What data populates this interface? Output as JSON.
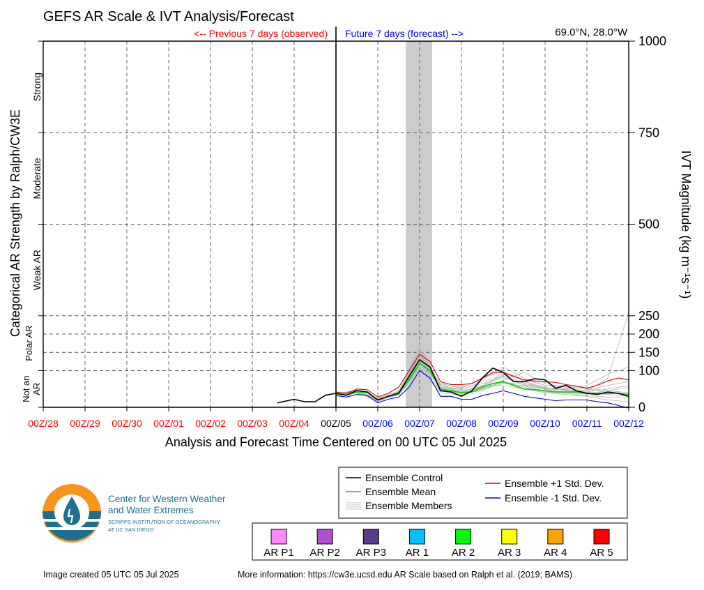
{
  "figure": {
    "title": "GEFS AR Scale & IVT Analysis/Forecast",
    "previous_label": "<-- Previous 7 days (observed)",
    "future_label": "Future 7 days (forecast) -->",
    "location": "69.0°N, 28.0°W",
    "footer_created": "Image created 05 UTC 05 Jul 2025",
    "footer_more": "More information: https://cw3e.ucsd.edu AR Scale based on Ralph et al. (2019; BAMS)",
    "logo": {
      "line1": "Center for Western Weather",
      "line2": "and Water Extremes",
      "line3": "SCRIPPS INSTITUTION OF OCEANOGRAPHY",
      "line4": "AT UC SAN DIEGO",
      "icon": "cw3e-water-drop-logo"
    },
    "colors": {
      "observed": "#ff0000",
      "forecast": "#0000ff",
      "control": "#000000",
      "mean": "#00dd00",
      "plus_std": "#dd0000",
      "minus_std": "#0000dd",
      "members": "#b4b4b4",
      "shade": "#cccccc"
    }
  },
  "chart_data": {
    "type": "line",
    "title": "GEFS AR Scale & IVT Analysis/Forecast",
    "xlabel": "Analysis and Forecast Time Centered on 00 UTC 05 Jul 2025",
    "ylabel_left": "Categorical AR Strength by Ralph/CW3E",
    "ylabel_right": "IVT Magnitude (kg m⁻¹s⁻¹)",
    "x_unit": "days relative to 00Z/05",
    "xlim": [
      -7,
      7
    ],
    "ylim": [
      0,
      1000
    ],
    "x_ticks": [
      {
        "x": -7,
        "label": "00Z/28",
        "kind": "observed"
      },
      {
        "x": -6,
        "label": "00Z/29",
        "kind": "observed"
      },
      {
        "x": -5,
        "label": "00Z/30",
        "kind": "observed"
      },
      {
        "x": -4,
        "label": "00Z/01",
        "kind": "observed"
      },
      {
        "x": -3,
        "label": "00Z/02",
        "kind": "observed"
      },
      {
        "x": -2,
        "label": "00Z/03",
        "kind": "observed"
      },
      {
        "x": -1,
        "label": "00Z/04",
        "kind": "observed"
      },
      {
        "x": 0,
        "label": "00Z/05",
        "kind": "current"
      },
      {
        "x": 1,
        "label": "00Z/06",
        "kind": "forecast"
      },
      {
        "x": 2,
        "label": "00Z/07",
        "kind": "forecast"
      },
      {
        "x": 3,
        "label": "00Z/08",
        "kind": "forecast"
      },
      {
        "x": 4,
        "label": "00Z/09",
        "kind": "forecast"
      },
      {
        "x": 5,
        "label": "00Z/10",
        "kind": "forecast"
      },
      {
        "x": 6,
        "label": "00Z/11",
        "kind": "forecast"
      },
      {
        "x": 7,
        "label": "00Z/12",
        "kind": "forecast"
      }
    ],
    "y_ticks": [
      {
        "y": 0,
        "label": "0"
      },
      {
        "y": 100,
        "label": "100"
      },
      {
        "y": 150,
        "label": "150"
      },
      {
        "y": 200,
        "label": "200"
      },
      {
        "y": 250,
        "label": "250"
      },
      {
        "y": 500,
        "label": "500"
      },
      {
        "y": 750,
        "label": "750"
      },
      {
        "y": 1000,
        "label": "1000"
      }
    ],
    "categories": [
      {
        "label": "Strong",
        "y0": 750,
        "y1": 1000
      },
      {
        "label": "Moderate",
        "y0": 500,
        "y1": 750
      },
      {
        "label": "Weak AR",
        "y0": 250,
        "y1": 500
      },
      {
        "label_lines": [
          "Polar AR"
        ],
        "y0": 100,
        "y1": 250
      },
      {
        "label_lines": [
          "Not an",
          "AR"
        ],
        "y0": 0,
        "y1": 100
      }
    ],
    "shaded_x_range": [
      1.67,
      2.3
    ],
    "grid": true,
    "legend": {
      "placement": "bottom-right",
      "entries": [
        {
          "key": "control",
          "label": "Ensemble Control"
        },
        {
          "key": "mean",
          "label": "Ensemble Mean"
        },
        {
          "key": "members",
          "label": "Ensemble Members"
        },
        {
          "key": "plus",
          "label": "Ensemble +1 Std. Dev."
        },
        {
          "key": "minus",
          "label": "Ensemble -1 Std. Dev."
        }
      ]
    },
    "ar_scale": [
      {
        "label": "AR P1",
        "color": "#ff88ff"
      },
      {
        "label": "AR P2",
        "color": "#b050d0"
      },
      {
        "label": "AR P3",
        "color": "#5a3a8a"
      },
      {
        "label": "AR 1",
        "color": "#00c0ff"
      },
      {
        "label": "AR 2",
        "color": "#00ff00"
      },
      {
        "label": "AR 3",
        "color": "#ffff00"
      },
      {
        "label": "AR 4",
        "color": "#ffa500"
      },
      {
        "label": "AR 5",
        "color": "#ff0000"
      }
    ],
    "series": [
      {
        "key": "control",
        "x": [
          -1.4,
          -1.0,
          -0.75,
          -0.5,
          -0.25,
          0,
          0.25,
          0.5,
          0.75,
          1.0,
          1.25,
          1.5,
          1.75,
          2.0,
          2.25,
          2.5,
          2.75,
          3.0,
          3.25,
          3.5,
          3.75,
          4.0,
          4.25,
          4.5,
          4.75,
          5.0,
          5.25,
          5.5,
          5.75,
          6.0,
          6.25,
          6.5,
          6.75,
          7.0
        ],
        "y": [
          12,
          22,
          15,
          15,
          33,
          38,
          33,
          46,
          42,
          20,
          30,
          38,
          85,
          130,
          110,
          45,
          42,
          30,
          45,
          80,
          107,
          95,
          70,
          70,
          78,
          75,
          52,
          60,
          45,
          38,
          35,
          42,
          38,
          30
        ]
      },
      {
        "key": "mean",
        "x": [
          0,
          0.25,
          0.5,
          0.75,
          1.0,
          1.25,
          1.5,
          1.75,
          2.0,
          2.25,
          2.5,
          2.75,
          3.0,
          3.25,
          3.5,
          3.75,
          4.0,
          4.25,
          4.5,
          4.75,
          5.0,
          5.25,
          5.5,
          5.75,
          6.0,
          6.25,
          6.5,
          6.75,
          7.0
        ],
        "y": [
          37,
          33,
          42,
          40,
          20,
          30,
          40,
          75,
          120,
          100,
          50,
          45,
          40,
          42,
          55,
          65,
          70,
          60,
          50,
          48,
          45,
          42,
          42,
          42,
          38,
          38,
          38,
          38,
          35
        ]
      },
      {
        "key": "plus",
        "x": [
          0,
          0.25,
          0.5,
          0.75,
          1.0,
          1.25,
          1.5,
          1.75,
          2.0,
          2.25,
          2.5,
          2.75,
          3.0,
          3.25,
          3.5,
          3.75,
          4.0,
          4.25,
          4.5,
          4.75,
          5.0,
          5.25,
          5.5,
          5.75,
          6.0,
          6.25,
          6.5,
          6.75,
          7.0
        ],
        "y": [
          42,
          38,
          50,
          48,
          28,
          38,
          55,
          100,
          145,
          125,
          70,
          62,
          62,
          65,
          80,
          95,
          95,
          85,
          75,
          72,
          70,
          68,
          62,
          58,
          52,
          60,
          72,
          80,
          75
        ]
      },
      {
        "key": "minus",
        "x": [
          0,
          0.25,
          0.5,
          0.75,
          1.0,
          1.25,
          1.5,
          1.75,
          2.0,
          2.25,
          2.5,
          2.75,
          3.0,
          3.25,
          3.5,
          3.75,
          4.0,
          4.25,
          4.5,
          4.75,
          5.0,
          5.25,
          5.5,
          5.75,
          6.0,
          6.25,
          6.5,
          6.75,
          7.0
        ],
        "y": [
          32,
          28,
          35,
          32,
          12,
          22,
          28,
          55,
          100,
          80,
          30,
          30,
          22,
          22,
          32,
          38,
          45,
          38,
          30,
          26,
          22,
          18,
          20,
          20,
          20,
          15,
          12,
          5,
          -2
        ]
      },
      {
        "key": "members",
        "x": [
          0,
          0.5,
          1.0,
          1.5,
          2.0,
          2.5,
          3.0,
          3.5,
          4.0,
          4.5,
          5.0,
          5.5,
          6.0,
          6.5,
          7.0
        ],
        "lines": [
          [
            38,
            44,
            18,
            38,
            140,
            55,
            48,
            70,
            85,
            60,
            50,
            48,
            40,
            35,
            30
          ],
          [
            36,
            40,
            22,
            42,
            160,
            60,
            40,
            55,
            90,
            75,
            60,
            52,
            45,
            60,
            70
          ],
          [
            37,
            45,
            20,
            35,
            110,
            45,
            35,
            50,
            70,
            55,
            42,
            38,
            32,
            28,
            25
          ],
          [
            39,
            42,
            15,
            40,
            130,
            65,
            52,
            80,
            100,
            70,
            55,
            45,
            42,
            50,
            60
          ],
          [
            35,
            38,
            25,
            45,
            150,
            50,
            45,
            60,
            60,
            50,
            40,
            35,
            30,
            20,
            15
          ],
          [
            38,
            46,
            18,
            36,
            120,
            48,
            38,
            45,
            75,
            95,
            65,
            55,
            50,
            40,
            35
          ],
          [
            36,
            41,
            21,
            39,
            145,
            58,
            50,
            65,
            80,
            65,
            52,
            50,
            60,
            90,
            110
          ],
          [
            37,
            43,
            19,
            41,
            135,
            52,
            42,
            58,
            95,
            72,
            48,
            42,
            38,
            35,
            30
          ],
          [
            38,
            40,
            22,
            33,
            105,
            40,
            33,
            48,
            65,
            58,
            45,
            40,
            36,
            45,
            55
          ],
          [
            36,
            44,
            16,
            43,
            155,
            62,
            55,
            75,
            110,
            80,
            60,
            58,
            52,
            45,
            40
          ],
          [
            37,
            42,
            20,
            38,
            125,
            55,
            44,
            52,
            68,
            62,
            50,
            47,
            44,
            80,
            260
          ],
          [
            38,
            45,
            23,
            37,
            170,
            47,
            39,
            57,
            85,
            66,
            53,
            49,
            41,
            38,
            36
          ]
        ]
      }
    ]
  }
}
